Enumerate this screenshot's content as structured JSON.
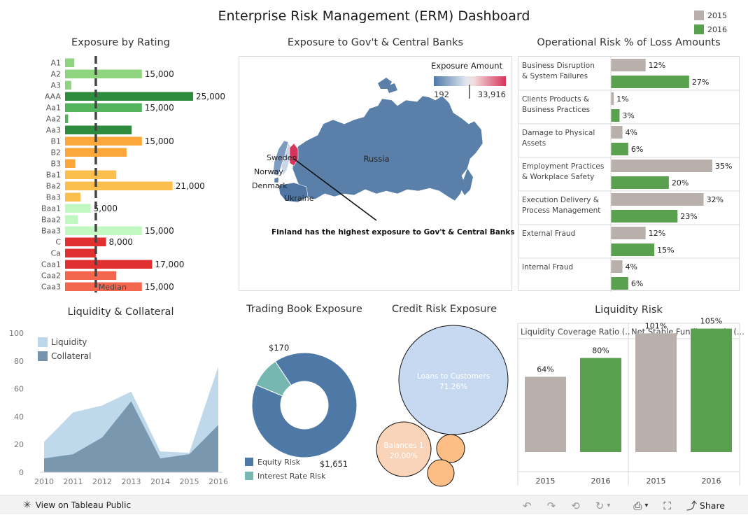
{
  "dashboard": {
    "title": "Enterprise Risk Management (ERM) Dashboard",
    "legend": [
      {
        "label": "2015",
        "color": "#b9b0ab"
      },
      {
        "label": "2016",
        "color": "#59a14f"
      }
    ]
  },
  "chart_data": [
    {
      "id": "exposure-by-rating",
      "type": "bar",
      "title": "Exposure by Rating",
      "orientation": "horizontal",
      "median_label": "Median",
      "median": 6000,
      "xlim": [
        0,
        30000
      ],
      "categories": [
        "A1",
        "A2",
        "A3",
        "AAA",
        "Aa1",
        "Aa2",
        "Aa3",
        "B1",
        "B2",
        "B3",
        "Ba1",
        "Ba2",
        "Ba3",
        "Baa1",
        "Baa2",
        "Baa3",
        "C",
        "Ca",
        "Caa1",
        "Caa2",
        "Caa3"
      ],
      "values": [
        1800,
        15000,
        1200,
        25000,
        15000,
        600,
        13000,
        15000,
        12000,
        2000,
        10000,
        21000,
        3000,
        5000,
        2500,
        15000,
        8000,
        6000,
        17000,
        10000,
        15000
      ],
      "value_labels": [
        "",
        "15,000",
        "",
        "25,000",
        "15,000",
        "",
        "",
        "15,000",
        "",
        "",
        "",
        "21,000",
        "",
        "5,000",
        "",
        "15,000",
        "8,000",
        "",
        "17,000",
        "",
        "15,000"
      ],
      "colors": [
        "#8fd47f",
        "#8fd47f",
        "#8fd47f",
        "#2e8b3e",
        "#55b35e",
        "#55b35e",
        "#2e8b3e",
        "#fba73a",
        "#fba73a",
        "#fba73a",
        "#fbbf4e",
        "#fbbf4e",
        "#fbbf4e",
        "#c2f7c2",
        "#c2f7c2",
        "#c2f7c2",
        "#e03030",
        "#e03030",
        "#e03030",
        "#f2674e",
        "#f2674e"
      ]
    },
    {
      "id": "exposure-gov-central-banks",
      "type": "map",
      "title": "Exposure to Gov't & Central Banks",
      "legend_title": "Exposure Amount",
      "range": [
        192,
        33916
      ],
      "range_labels": [
        "192",
        "33,916"
      ],
      "countries": [
        "Russia",
        "Sweden",
        "Norway",
        "Denmark",
        "Ukraine",
        "Finland"
      ],
      "annotation": "Finland has the highest exposure to Gov't & Central Banks",
      "colors": {
        "low": "#4e79a7",
        "high": "#d6345a"
      }
    },
    {
      "id": "operational-risk",
      "type": "bar",
      "title": "Operational Risk % of Loss Amounts",
      "orientation": "horizontal",
      "categories": [
        "Business Disruption & System Failures",
        "Clients Products & Business Practices",
        "Damage to Physical Assets",
        "Employment Practices & Workplace Safety",
        "Execution Delivery & Process Management",
        "External Fraud",
        "Internal Fraud"
      ],
      "series": [
        {
          "name": "2015",
          "values": [
            12,
            1,
            4,
            35,
            32,
            12,
            4
          ],
          "labels": [
            "12%",
            "1%",
            "4%",
            "35%",
            "32%",
            "12%",
            "4%"
          ],
          "color": "#b9b0ab"
        },
        {
          "name": "2016",
          "values": [
            27,
            3,
            6,
            20,
            23,
            15,
            6
          ],
          "labels": [
            "27%",
            "3%",
            "6%",
            "20%",
            "23%",
            "15%",
            "6%"
          ],
          "color": "#59a14f"
        }
      ],
      "xlim": [
        0,
        40
      ]
    },
    {
      "id": "liquidity-collateral",
      "type": "area",
      "title": "Liquidity & Collateral",
      "x": [
        "2010",
        "2011",
        "2012",
        "2013",
        "2014",
        "2015",
        "2016"
      ],
      "ylim": [
        0,
        100
      ],
      "y_ticks": [
        0,
        20,
        40,
        60,
        80,
        100
      ],
      "series": [
        {
          "name": "Liquidity",
          "values": [
            22,
            43,
            48,
            58,
            15,
            14,
            76
          ],
          "color": "#bcd7ea"
        },
        {
          "name": "Collateral",
          "values": [
            10,
            13,
            25,
            51,
            10,
            13,
            34
          ],
          "color": "#7693ad"
        }
      ]
    },
    {
      "id": "trading-book-exposure",
      "type": "pie",
      "title": "Trading Book Exposure",
      "series": [
        {
          "name": "Equity Risk",
          "value": 1651,
          "label": "$1,651",
          "color": "#4e79a7"
        },
        {
          "name": "Interest Rate Risk",
          "value": 170,
          "label": "$170",
          "color": "#76b7b2"
        }
      ]
    },
    {
      "id": "credit-risk-exposure",
      "type": "bubble",
      "title": "Credit Risk Exposure",
      "series": [
        {
          "name": "Loans to Customers",
          "value": 71.26,
          "label": "71.26%",
          "color": "#c6d9f1"
        },
        {
          "name": "Balances 1",
          "value": 20.0,
          "label": "20.00%",
          "color": "#f9d4b8"
        },
        {
          "name": "",
          "value": 4.5,
          "label": "",
          "color": "#fdbe85"
        },
        {
          "name": "",
          "value": 4.24,
          "label": "",
          "color": "#fdbe85"
        }
      ]
    },
    {
      "id": "liquidity-risk",
      "type": "bar",
      "title": "Liquidity Risk",
      "ylim": [
        0,
        130
      ],
      "panels": [
        {
          "name": "Liquidity Coverage Ratio (..",
          "categories": [
            "2015",
            "2016"
          ],
          "values": [
            64,
            80
          ],
          "labels": [
            "64%",
            "80%"
          ]
        },
        {
          "name": "Net Stable Funding Ratio (...",
          "categories": [
            "2015",
            "2016"
          ],
          "values": [
            101,
            105
          ],
          "labels": [
            "101%",
            "105%"
          ]
        }
      ],
      "colors": [
        "#b9b0ab",
        "#59a14f"
      ]
    }
  ],
  "footer": {
    "view_label": "View on Tableau Public",
    "share_label": "Share"
  }
}
